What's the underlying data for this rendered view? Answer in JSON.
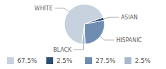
{
  "chart_data": {
    "type": "pie",
    "categories": [
      "WHITE",
      "ASIAN",
      "HISPANIC",
      "BLACK"
    ],
    "values": [
      67.5,
      2.5,
      27.5,
      2.5
    ],
    "value_labels": [
      "67.5%",
      "2.5%",
      "27.5%",
      "2.5%"
    ],
    "colors": [
      "#c8d2df",
      "#2e4d72",
      "#6f8db3",
      "#a7b8cb"
    ],
    "legend": "bottom"
  }
}
